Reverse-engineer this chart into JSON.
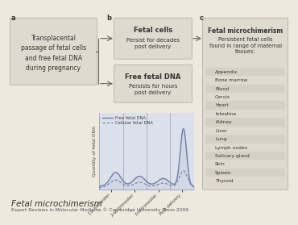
{
  "fig_bg": "#ede9df",
  "panel_a_text": "Transplacental\npassage of fetal cells\nand free fetal DNA\nduring pregnancy",
  "panel_b_top_title": "Fetal cells",
  "panel_b_top_text": "Persist for decades\npost delivery",
  "panel_b_bot_title": "Free fetal DNA",
  "panel_b_bot_text": "Persists for hours\npost delivery",
  "panel_c_title": "Fetal microchimerism",
  "panel_c_subtitle": "Persistent fetal cells\nfound in range of maternal\ntissues:",
  "panel_c_items": [
    "Appendix",
    "Bone marrow",
    "Blood",
    "Cervix",
    "Heart",
    "Intestine",
    "Kidney",
    "Liver",
    "Lung",
    "Lymph nodes",
    "Salivary gland",
    "Skin",
    "Spleen",
    "Thyroid"
  ],
  "legend_solid": "Free fetal DNA",
  "legend_dashed": "Cellular fetal DNA",
  "xtick_labels": [
    "1st trimester",
    "2nd trimester",
    "3rd trimester",
    "Post delivery"
  ],
  "ylabel": "Quantity of fetal DNA",
  "footer1": "Fetal microchimerism",
  "footer2": "Expert Reviews in Molecular Medicine © Cambridge University Press 2009",
  "box_color": "#dedad0",
  "arrow_color": "#666660",
  "line_color": "#7080a8",
  "fill_color": "#c8d0e0",
  "stripe_odd": "#d4d0c4",
  "stripe_even": "#dedad0",
  "label_a": "a",
  "label_b": "b",
  "label_c": "c"
}
